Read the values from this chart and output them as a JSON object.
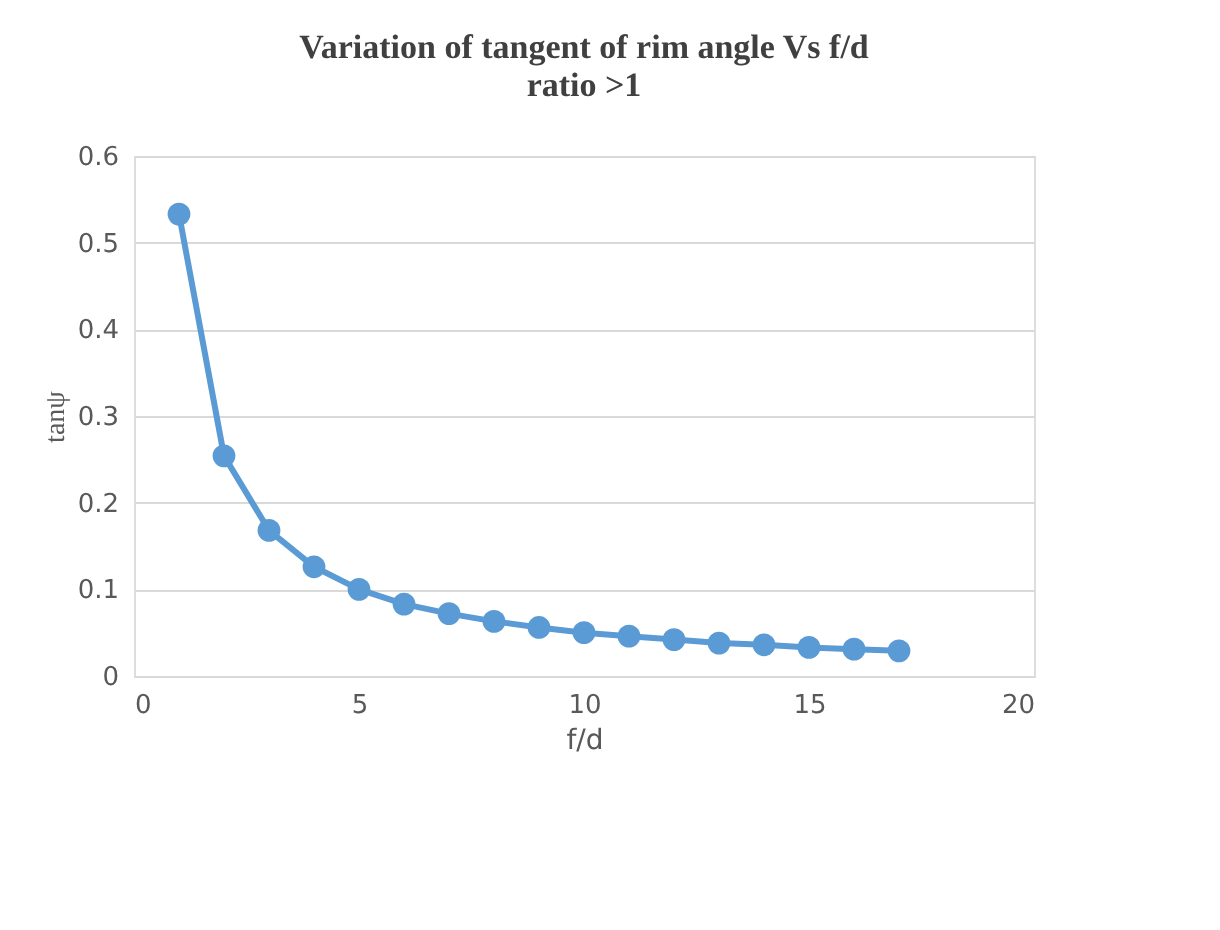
{
  "chart_data": {
    "type": "line",
    "title": "Variation of tangent of rim angle Vs f/d\nratio >1",
    "xlabel": "f/d",
    "ylabel": "tanψ",
    "x": [
      1,
      2,
      3,
      4,
      5,
      6,
      7,
      8,
      9,
      10,
      11,
      12,
      13,
      14,
      15,
      16,
      17
    ],
    "series": [
      {
        "color": "#5b9bd5",
        "values": [
          0.533,
          0.254,
          0.168,
          0.126,
          0.1,
          0.083,
          0.072,
          0.063,
          0.056,
          0.05,
          0.046,
          0.042,
          0.038,
          0.036,
          0.033,
          0.031,
          0.029
        ]
      }
    ],
    "xlim": [
      0,
      20
    ],
    "xticks": [
      0,
      5,
      10,
      15,
      20
    ],
    "ylim": [
      0,
      0.6
    ],
    "yticks": [
      0,
      0.1,
      0.2,
      0.3,
      0.4,
      0.5,
      0.6
    ],
    "grid": "y",
    "marker": "circle",
    "line_style": "solid"
  }
}
